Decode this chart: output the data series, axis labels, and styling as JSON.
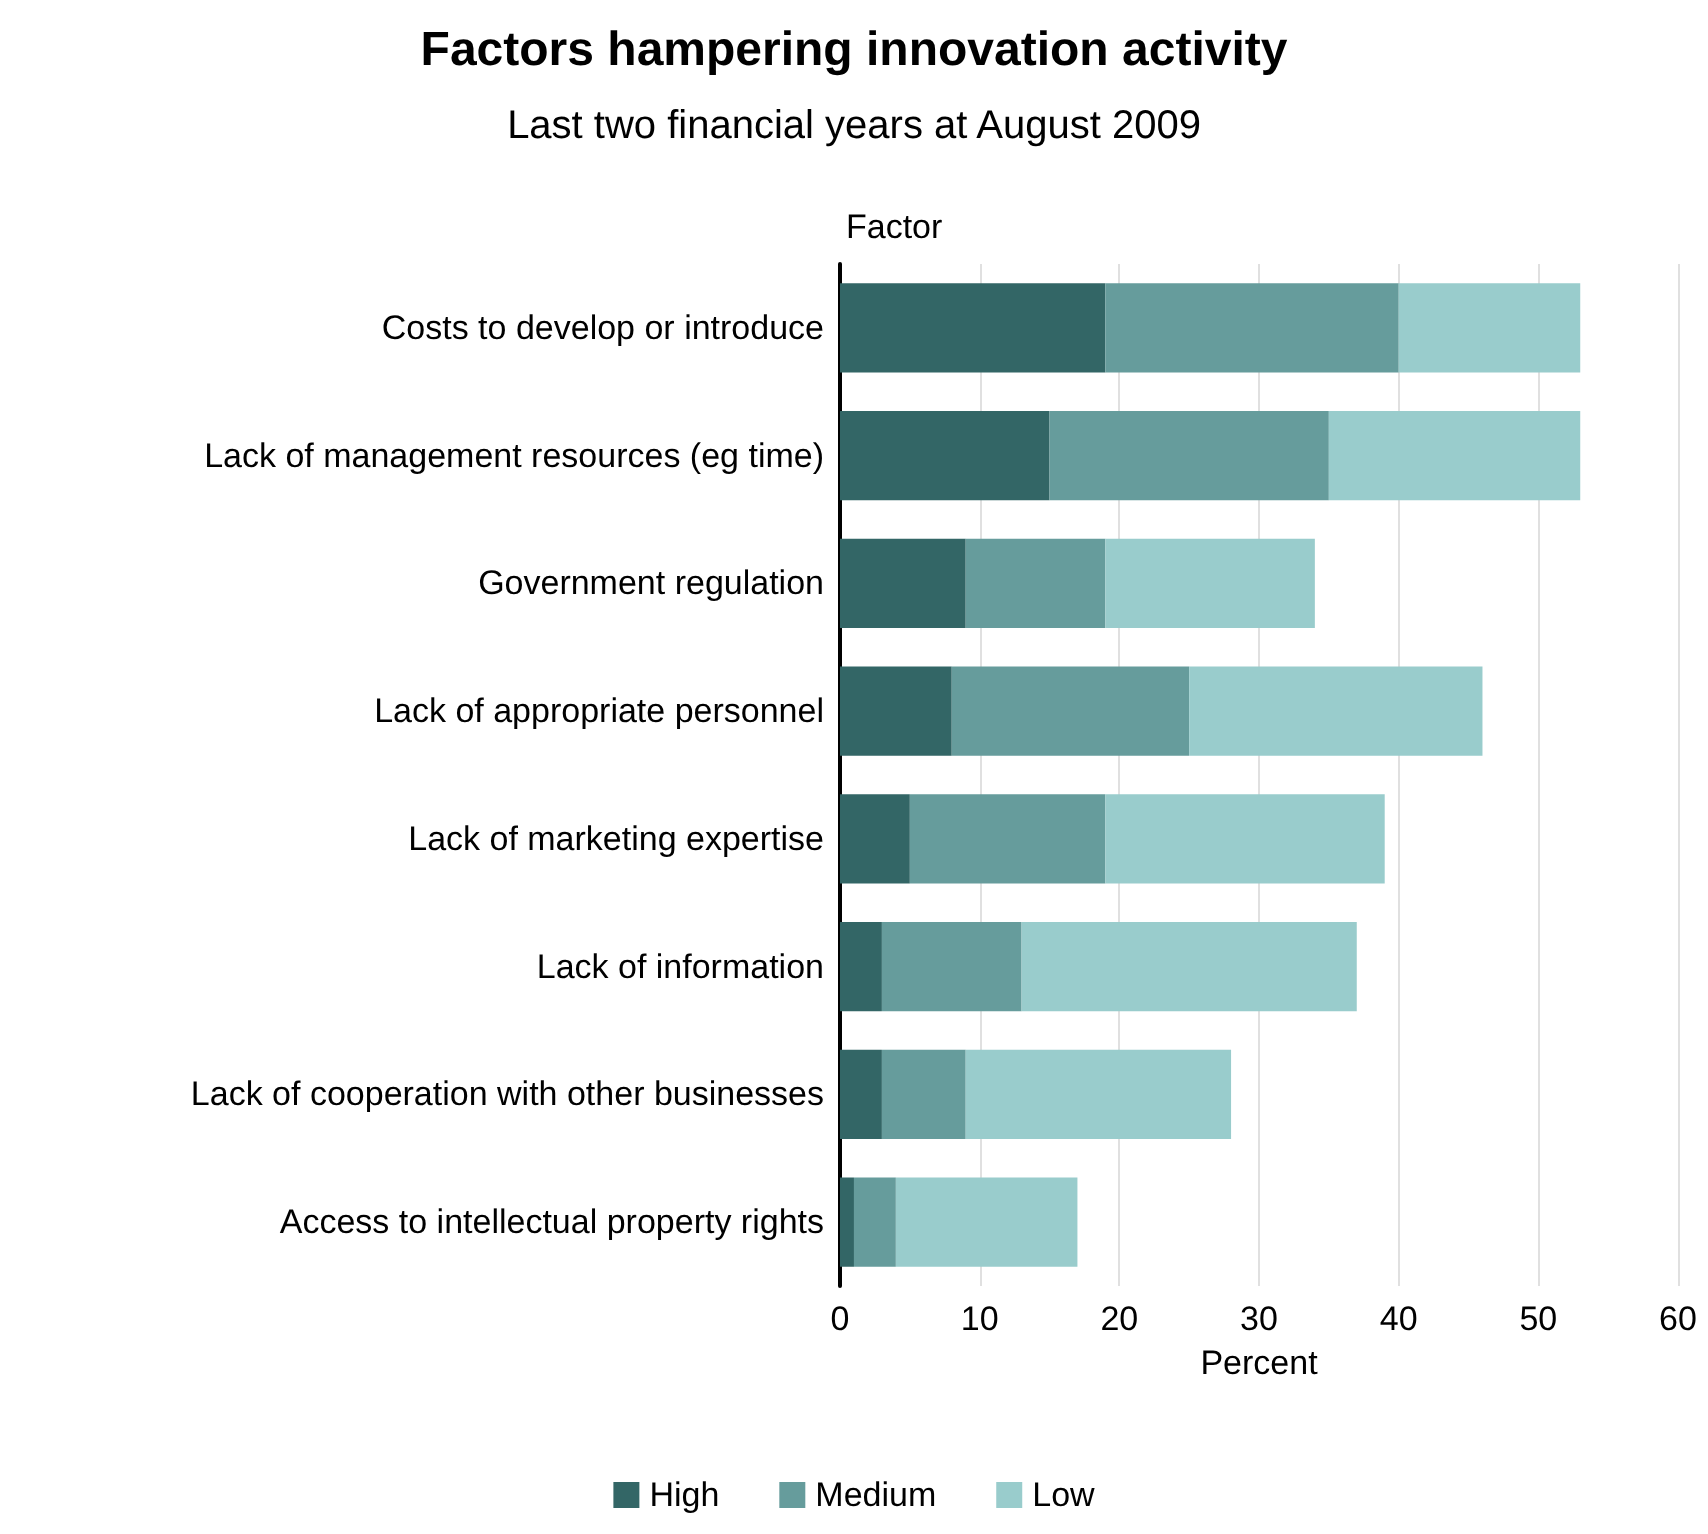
{
  "chart_data": {
    "type": "bar",
    "orientation": "horizontal",
    "stacked": true,
    "title": "Factors hampering innovation activity",
    "subtitle": "Last two financial years at August 2009",
    "xlabel": "Percent",
    "ylabel": "Factor",
    "categories": [
      "Costs to develop or introduce",
      "Lack of management resources (eg time)",
      "Government regulation",
      "Lack of appropriate personnel",
      "Lack of marketing expertise",
      "Lack of information",
      "Lack of cooperation with other businesses",
      "Access to intellectual property rights"
    ],
    "series": [
      {
        "name": "High",
        "color": "#336666",
        "values": [
          19,
          15,
          9,
          8,
          5,
          3,
          3,
          1
        ]
      },
      {
        "name": "Medium",
        "color": "#669c9c",
        "values": [
          21,
          20,
          10,
          17,
          14,
          10,
          6,
          3
        ]
      },
      {
        "name": "Low",
        "color": "#99cccc",
        "values": [
          13,
          18,
          15,
          21,
          20,
          24,
          19,
          13
        ]
      }
    ],
    "xlim": [
      0,
      60
    ],
    "xticks": [
      0,
      10,
      20,
      30,
      40,
      50,
      60
    ],
    "grid": "x",
    "legend": "bottom"
  }
}
